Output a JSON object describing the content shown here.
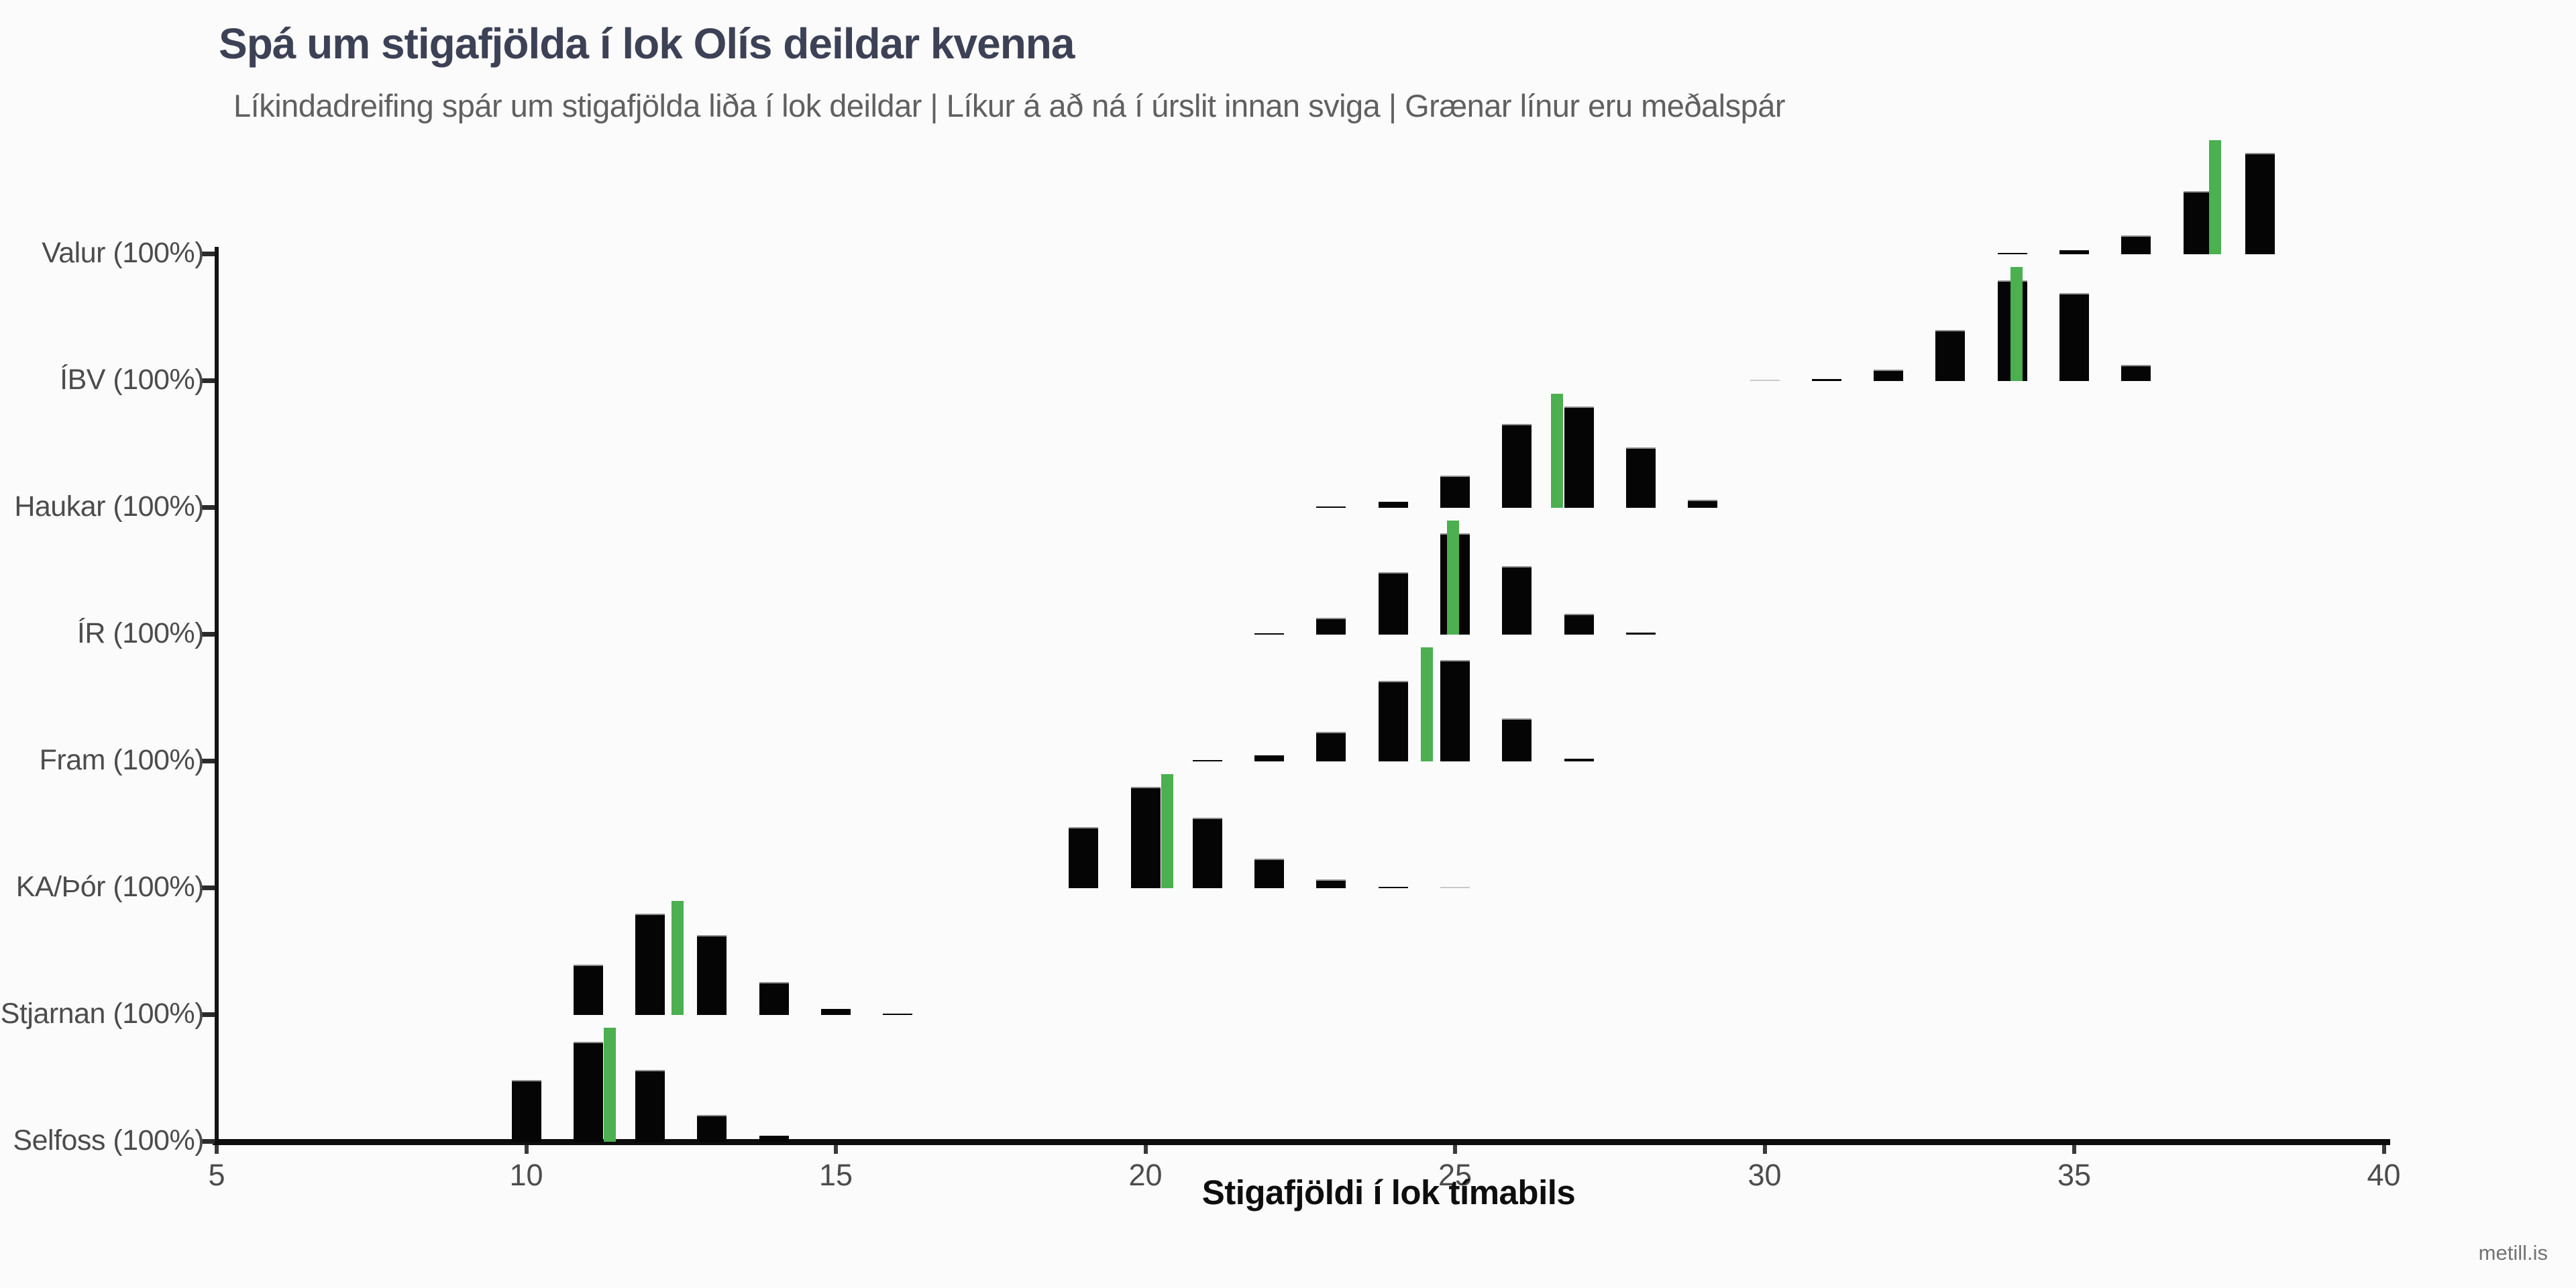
{
  "title": "Spá um stigafjölda í lok Olís deildar kvenna",
  "subtitle": "Líkindadreifing spár um stigafjölda liða í lok deildar | Líkur á að ná í úrslit innan sviga | Grænar línur eru meðalspár",
  "watermark": "metill.is",
  "colors": {
    "background": "#fbfbfb",
    "title": "#3d4156",
    "subtitle": "#606060",
    "bar": "#050505",
    "faint_bar": "#c9c9c9",
    "mean_line": "#4caf50",
    "axis": "#0d0d0d",
    "tick_label": "#4c4c4c"
  },
  "chart_data": {
    "type": "bar",
    "title": "Spá um stigafjölda í lok Olís deildar kvenna",
    "subtitle": "Líkindadreifing spár um stigafjölda liða í lok deildar | Líkur á að ná í úrslit innan sviga | Grænar línur eru meðalspár",
    "xlabel": "Stigafjöldi í lok tímabils",
    "ylabel": "",
    "xlim": [
      5,
      40
    ],
    "x_ticks": [
      5,
      10,
      15,
      20,
      25,
      30,
      35,
      40
    ],
    "grid": false,
    "legend": "none",
    "mean_marker": "green vertical line per team (meðalspá)",
    "teams": [
      {
        "name": "Valur",
        "label": "Valur (100%)",
        "qualify_probability": "100%",
        "mean_points": 37.27,
        "distribution": [
          {
            "points": 34,
            "h": 0.01,
            "light": false
          },
          {
            "points": 35,
            "h": 0.032,
            "light": false
          },
          {
            "points": 36,
            "h": 0.148,
            "light": false
          },
          {
            "points": 37,
            "h": 0.497,
            "light": false
          },
          {
            "points": 38,
            "h": 0.799,
            "light": false
          }
        ]
      },
      {
        "name": "ÍBV",
        "label": "ÍBV (100%)",
        "qualify_probability": "100%",
        "mean_points": 34.07,
        "distribution": [
          {
            "points": 30,
            "h": 0.006,
            "light": true
          },
          {
            "points": 31,
            "h": 0.016,
            "light": false
          },
          {
            "points": 32,
            "h": 0.09,
            "light": false
          },
          {
            "points": 33,
            "h": 0.401,
            "light": false
          },
          {
            "points": 34,
            "h": 0.794,
            "light": false
          },
          {
            "points": 35,
            "h": 0.693,
            "light": false
          },
          {
            "points": 36,
            "h": 0.127,
            "light": false
          }
        ]
      },
      {
        "name": "Haukar",
        "label": "Haukar (100%)",
        "qualify_probability": "100%",
        "mean_points": 26.65,
        "distribution": [
          {
            "points": 23,
            "h": 0.006,
            "light": false
          },
          {
            "points": 24,
            "h": 0.048,
            "light": false
          },
          {
            "points": 25,
            "h": 0.252,
            "light": false
          },
          {
            "points": 26,
            "h": 0.659,
            "light": false
          },
          {
            "points": 27,
            "h": 0.799,
            "light": false
          },
          {
            "points": 28,
            "h": 0.476,
            "light": false
          },
          {
            "points": 29,
            "h": 0.063,
            "light": false
          }
        ]
      },
      {
        "name": "ÍR",
        "label": "ÍR (100%)",
        "qualify_probability": "100%",
        "mean_points": 24.97,
        "distribution": [
          {
            "points": 22,
            "h": 0.01,
            "light": false
          },
          {
            "points": 23,
            "h": 0.132,
            "light": false
          },
          {
            "points": 24,
            "h": 0.492,
            "light": false
          },
          {
            "points": 25,
            "h": 0.799,
            "light": false
          },
          {
            "points": 26,
            "h": 0.54,
            "light": false
          },
          {
            "points": 27,
            "h": 0.162,
            "light": false
          },
          {
            "points": 28,
            "h": 0.016,
            "light": false
          }
        ]
      },
      {
        "name": "Fram",
        "label": "Fram (100%)",
        "qualify_probability": "100%",
        "mean_points": 24.55,
        "distribution": [
          {
            "points": 21,
            "h": 0.01,
            "light": false
          },
          {
            "points": 22,
            "h": 0.048,
            "light": false
          },
          {
            "points": 23,
            "h": 0.233,
            "light": false
          },
          {
            "points": 24,
            "h": 0.635,
            "light": false
          },
          {
            "points": 25,
            "h": 0.799,
            "light": false
          },
          {
            "points": 26,
            "h": 0.339,
            "light": false
          },
          {
            "points": 27,
            "h": 0.022,
            "light": false
          }
        ]
      },
      {
        "name": "KA/Þór",
        "label": "KA/Þór (100%)",
        "qualify_probability": "100%",
        "mean_points": 20.35,
        "distribution": [
          {
            "points": 19,
            "h": 0.481,
            "light": false
          },
          {
            "points": 20,
            "h": 0.799,
            "light": false
          },
          {
            "points": 21,
            "h": 0.557,
            "light": false
          },
          {
            "points": 22,
            "h": 0.233,
            "light": false
          },
          {
            "points": 23,
            "h": 0.07,
            "light": false
          },
          {
            "points": 24,
            "h": 0.012,
            "light": false
          },
          {
            "points": 25,
            "h": 0.005,
            "light": true
          }
        ]
      },
      {
        "name": "Stjarnan",
        "label": "Stjarnan (100%)",
        "qualify_probability": "100%",
        "mean_points": 12.44,
        "distribution": [
          {
            "points": 11,
            "h": 0.397,
            "light": false
          },
          {
            "points": 12,
            "h": 0.799,
            "light": false
          },
          {
            "points": 13,
            "h": 0.627,
            "light": false
          },
          {
            "points": 14,
            "h": 0.257,
            "light": false
          },
          {
            "points": 15,
            "h": 0.05,
            "light": false
          },
          {
            "points": 16,
            "h": 0.012,
            "light": false
          }
        ]
      },
      {
        "name": "Selfoss",
        "label": "Selfoss (100%)",
        "qualify_probability": "100%",
        "mean_points": 11.35,
        "distribution": [
          {
            "points": 10,
            "h": 0.487,
            "light": false
          },
          {
            "points": 11,
            "h": 0.79,
            "light": false
          },
          {
            "points": 12,
            "h": 0.567,
            "light": false
          },
          {
            "points": 13,
            "h": 0.212,
            "light": false
          },
          {
            "points": 14,
            "h": 0.045,
            "light": false
          }
        ]
      }
    ]
  }
}
